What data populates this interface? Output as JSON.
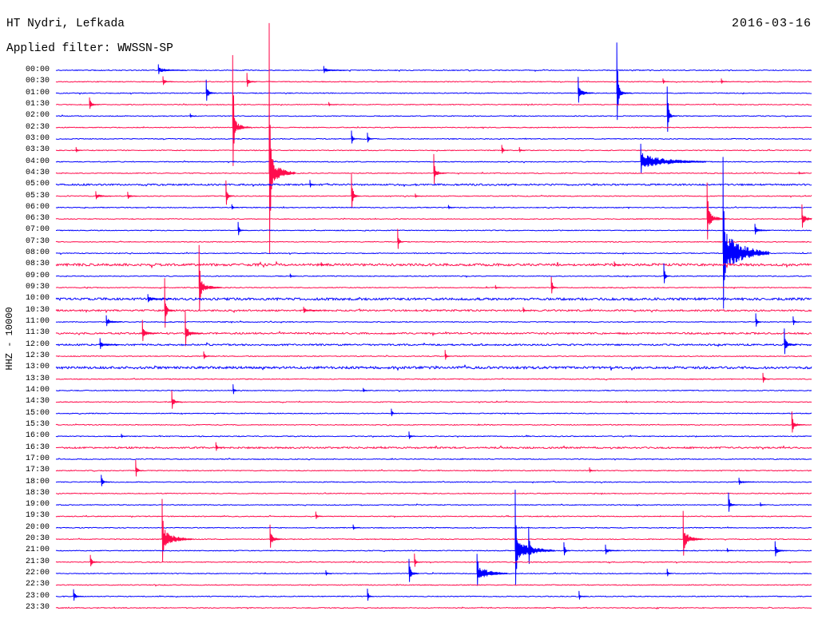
{
  "chart_data": {
    "type": "line",
    "title": "HT Nydri, Lefkada",
    "subtitle": "Applied filter: WWSSN-SP",
    "date": "2016-03-16",
    "ylabel": "HHZ - 10000",
    "xlabel": "",
    "traces": [
      {
        "label": "00:00",
        "color": "#0000ff",
        "events": [
          {
            "time": "00:04:04",
            "amp": 0.3,
            "coda": 0.2,
            "dur": 1.0
          },
          {
            "time": "00:10:38",
            "amp": 0.2,
            "coda": 0.15,
            "dur": 0.8
          }
        ]
      },
      {
        "label": "00:30",
        "color": "#ff0d4d",
        "events": [
          {
            "time": "00:34:15",
            "amp": 0.3,
            "coda": 0.15,
            "dur": 0.3
          },
          {
            "time": "00:37:35",
            "amp": 0.55,
            "coda": 0.2,
            "dur": 0.3
          },
          {
            "time": "00:54:06",
            "amp": 0.2
          },
          {
            "time": "00:56:25",
            "amp": 0.2
          }
        ]
      },
      {
        "label": "01:00",
        "color": "#0000ff",
        "events": [
          {
            "time": "01:05:58",
            "amp": 0.85,
            "coda": 0.3,
            "dur": 0.3
          },
          {
            "time": "01:20:44",
            "amp": 1.0,
            "coda": 0.4,
            "dur": 0.5
          },
          {
            "time": "01:22:16",
            "amp": 4.0,
            "coda": 0.4,
            "dur": 0.5
          }
        ]
      },
      {
        "label": "01:30",
        "color": "#ff0d4d",
        "events": [
          {
            "time": "01:31:20",
            "amp": 0.4,
            "coda": 0.2,
            "dur": 0.3
          },
          {
            "time": "01:40:50",
            "amp": 0.15
          }
        ]
      },
      {
        "label": "02:00",
        "color": "#0000ff",
        "events": [
          {
            "time": "02:24:16",
            "amp": 2.2,
            "coda": 0.35,
            "dur": 0.3
          },
          {
            "time": "02:05:20",
            "amp": 0.15
          }
        ]
      },
      {
        "label": "02:30",
        "color": "#ff0d4d",
        "events": [
          {
            "time": "02:37:01",
            "amp": 5.6,
            "coda": 0.7,
            "dur": 0.6
          }
        ]
      },
      {
        "label": "03:00",
        "color": "#0000ff",
        "events": [
          {
            "time": "03:11:44",
            "amp": 0.55,
            "coda": 0.15,
            "dur": 0.15
          },
          {
            "time": "03:12:22",
            "amp": 0.4
          }
        ]
      },
      {
        "label": "03:30",
        "color": "#ff0d4d",
        "events": [
          {
            "time": "03:30:48",
            "amp": 0.2
          },
          {
            "time": "03:47:42",
            "amp": 0.35
          },
          {
            "time": "03:48:24",
            "amp": 0.2
          }
        ]
      },
      {
        "label": "04:00",
        "color": "#0000ff",
        "events": [
          {
            "time": "04:23:13",
            "amp": 0.85,
            "coda": 0.7,
            "dur": 2.5
          }
        ]
      },
      {
        "label": "04:30",
        "color": "#ff0d4d",
        "events": [
          {
            "time": "04:38:28",
            "amp": 11.7,
            "coda": 1.4,
            "dur": 0.95
          },
          {
            "time": "04:45:00",
            "amp": 1.25,
            "coda": 0.4,
            "dur": 0.4
          },
          {
            "time": "04:59:30",
            "amp": 0.1
          }
        ]
      },
      {
        "label": "05:00",
        "color": "#0000ff",
        "noise": 0.07,
        "events": [
          {
            "time": "05:10:05",
            "amp": 0.3
          }
        ]
      },
      {
        "label": "05:30",
        "color": "#ff0d4d",
        "events": [
          {
            "time": "05:31:35",
            "amp": 0.2,
            "coda": 0.2,
            "dur": 0.5
          },
          {
            "time": "05:32:51",
            "amp": 0.2,
            "coda": 0.15,
            "dur": 0.3
          },
          {
            "time": "05:36:45",
            "amp": 1.05,
            "coda": 0.3,
            "dur": 0.2
          },
          {
            "time": "05:41:44",
            "amp": 1.55,
            "coda": 0.35,
            "dur": 0.25
          },
          {
            "time": "05:44:16",
            "amp": 0.15
          }
        ]
      },
      {
        "label": "06:00",
        "color": "#0000ff",
        "events": [
          {
            "time": "06:06:59",
            "amp": 0.2
          },
          {
            "time": "06:15:35",
            "amp": 0.15
          }
        ]
      },
      {
        "label": "06:30",
        "color": "#ff0d4d",
        "events": [
          {
            "time": "06:55:51",
            "amp": 2.45,
            "coda": 0.7,
            "dur": 0.65
          },
          {
            "time": "06:59:37",
            "amp": 0.85,
            "coda": 0.4,
            "dur": 0.45
          }
        ]
      },
      {
        "label": "07:00",
        "color": "#0000ff",
        "events": [
          {
            "time": "07:07:14",
            "amp": 0.55
          },
          {
            "time": "07:27:45",
            "amp": 0.35,
            "coda": 0.2,
            "dur": 0.5
          }
        ]
      },
      {
        "label": "07:30",
        "color": "#ff0d4d",
        "events": [
          {
            "time": "07:43:34",
            "amp": 0.85
          }
        ]
      },
      {
        "label": "08:00",
        "color": "#0000ff",
        "events": [
          {
            "time": "08:26:29",
            "amp": 6.3,
            "coda": 2.1,
            "dur": 1.75
          }
        ]
      },
      {
        "label": "08:30",
        "color": "#ff0d4d",
        "noise": 0.1,
        "events": [
          {
            "time": "08:52:10",
            "amp": 0.2
          },
          {
            "time": "08:40:32",
            "amp": 0.15
          }
        ]
      },
      {
        "label": "09:00",
        "color": "#0000ff",
        "events": [
          {
            "time": "09:24:08",
            "amp": 0.85
          },
          {
            "time": "09:09:18",
            "amp": 0.15
          }
        ]
      },
      {
        "label": "09:30",
        "color": "#ff0d4d",
        "events": [
          {
            "time": "09:35:41",
            "amp": 3.15,
            "coda": 0.55,
            "dur": 0.8
          },
          {
            "time": "09:49:40",
            "amp": 0.7
          },
          {
            "time": "09:47:27",
            "amp": 0.15
          }
        ]
      },
      {
        "label": "10:00",
        "color": "#0000ff",
        "noise": 0.1,
        "events": [
          {
            "time": "10:03:39",
            "amp": 0.2,
            "coda": 0.2,
            "dur": 0.8
          }
        ]
      },
      {
        "label": "10:30",
        "color": "#ff0d4d",
        "noise": 0.07,
        "events": [
          {
            "time": "10:34:19",
            "amp": 2.45,
            "coda": 0.35,
            "dur": 0.3
          },
          {
            "time": "10:48:33",
            "amp": 0.2
          },
          {
            "time": "10:39:50",
            "amp": 0.15,
            "coda": 0.15,
            "dur": 0.6
          }
        ]
      },
      {
        "label": "11:00",
        "color": "#0000ff",
        "events": [
          {
            "time": "11:02:00",
            "amp": 0.3,
            "coda": 0.25,
            "dur": 0.5
          },
          {
            "time": "11:27:47",
            "amp": 0.55
          },
          {
            "time": "11:29:16",
            "amp": 0.35
          }
        ]
      },
      {
        "label": "11:30",
        "color": "#ff0d4d",
        "noise": 0.07,
        "events": [
          {
            "time": "11:33:26",
            "amp": 0.85,
            "coda": 0.3,
            "dur": 0.5
          },
          {
            "time": "11:35:08",
            "amp": 1.55,
            "coda": 0.4,
            "dur": 0.6
          }
        ]
      },
      {
        "label": "12:00",
        "color": "#0000ff",
        "noise": 0.07,
        "events": [
          {
            "time": "12:01:45",
            "amp": 0.3,
            "coda": 0.25,
            "dur": 0.65
          },
          {
            "time": "12:28:55",
            "amp": 1.05,
            "coda": 0.35,
            "dur": 0.4
          }
        ]
      },
      {
        "label": "12:30",
        "color": "#ff0d4d",
        "events": [
          {
            "time": "12:35:52",
            "amp": 0.3
          },
          {
            "time": "12:45:27",
            "amp": 0.4
          }
        ]
      },
      {
        "label": "13:00",
        "color": "#0000ff",
        "noise": 0.1,
        "events": []
      },
      {
        "label": "13:30",
        "color": "#ff0d4d",
        "events": [
          {
            "time": "13:58:04",
            "amp": 0.4
          }
        ]
      },
      {
        "label": "14:00",
        "color": "#0000ff",
        "events": [
          {
            "time": "14:07:02",
            "amp": 0.4
          },
          {
            "time": "14:12:12",
            "amp": 0.15
          }
        ]
      },
      {
        "label": "14:30",
        "color": "#ff0d4d",
        "events": [
          {
            "time": "14:34:36",
            "amp": 0.7,
            "coda": 0.3,
            "dur": 0.3
          }
        ]
      },
      {
        "label": "15:00",
        "color": "#0000ff",
        "events": [
          {
            "time": "15:13:19",
            "amp": 0.3
          }
        ]
      },
      {
        "label": "15:30",
        "color": "#ff0d4d",
        "events": [
          {
            "time": "15:59:13",
            "amp": 0.85,
            "coda": 0.3,
            "dur": 0.4
          }
        ]
      },
      {
        "label": "16:00",
        "color": "#0000ff",
        "events": [
          {
            "time": "16:14:01",
            "amp": 0.3
          },
          {
            "time": "16:02:36",
            "amp": 0.15
          }
        ]
      },
      {
        "label": "16:30",
        "color": "#ff0d4d",
        "noise": 0.07,
        "events": [
          {
            "time": "16:36:21",
            "amp": 0.35
          }
        ]
      },
      {
        "label": "17:00",
        "color": "#0000ff",
        "events": []
      },
      {
        "label": "17:30",
        "color": "#ff0d4d",
        "events": [
          {
            "time": "17:33:10",
            "amp": 0.7,
            "coda": 0.2,
            "dur": 0.2
          },
          {
            "time": "17:51:11",
            "amp": 0.2
          }
        ]
      },
      {
        "label": "18:00",
        "color": "#0000ff",
        "events": [
          {
            "time": "18:01:48",
            "amp": 0.4,
            "coda": 0.2,
            "dur": 0.25
          },
          {
            "time": "18:27:07",
            "amp": 0.2,
            "coda": 0.15,
            "dur": 0.5
          }
        ]
      },
      {
        "label": "18:30",
        "color": "#ff0d4d",
        "events": []
      },
      {
        "label": "19:00",
        "color": "#0000ff",
        "events": [
          {
            "time": "19:26:42",
            "amp": 0.85,
            "coda": 0.2,
            "dur": 0.3
          },
          {
            "time": "19:27:58",
            "amp": 0.15
          }
        ]
      },
      {
        "label": "19:30",
        "color": "#ff0d4d",
        "events": [
          {
            "time": "19:40:19",
            "amp": 0.3
          }
        ]
      },
      {
        "label": "20:00",
        "color": "#0000ff",
        "events": [
          {
            "time": "20:11:48",
            "amp": 0.2
          }
        ]
      },
      {
        "label": "20:30",
        "color": "#ff0d4d",
        "events": [
          {
            "time": "20:34:13",
            "amp": 2.65,
            "coda": 0.85,
            "dur": 1.1
          },
          {
            "time": "20:38:30",
            "amp": 0.85,
            "coda": 0.4,
            "dur": 0.4
          },
          {
            "time": "20:54:54",
            "amp": 1.75,
            "coda": 0.7,
            "dur": 0.7
          }
        ]
      },
      {
        "label": "21:00",
        "color": "#0000ff",
        "events": [
          {
            "time": "21:18:14",
            "amp": 4.3,
            "coda": 1.0,
            "dur": 1.45
          },
          {
            "time": "21:18:46",
            "amp": 1.55,
            "coda": 0.5,
            "dur": 0.3
          },
          {
            "time": "21:20:10",
            "amp": 0.55
          },
          {
            "time": "21:21:49",
            "amp": 0.3,
            "coda": 0.2,
            "dur": 0.4
          },
          {
            "time": "21:28:33",
            "amp": 0.5,
            "coda": 0.3,
            "dur": 0.3
          },
          {
            "time": "21:26:39",
            "amp": 0.15
          }
        ]
      },
      {
        "label": "21:30",
        "color": "#ff0d4d",
        "events": [
          {
            "time": "21:31:22",
            "amp": 0.4,
            "coda": 0.2,
            "dur": 0.3
          },
          {
            "time": "21:44:14",
            "amp": 0.55
          }
        ]
      },
      {
        "label": "22:00",
        "color": "#0000ff",
        "events": [
          {
            "time": "22:14:01",
            "amp": 0.85,
            "coda": 0.4,
            "dur": 0.3
          },
          {
            "time": "22:16:43",
            "amp": 1.0,
            "coda": 0.7,
            "dur": 1.1
          },
          {
            "time": "22:24:16",
            "amp": 0.3
          },
          {
            "time": "22:10:43",
            "amp": 0.2
          }
        ]
      },
      {
        "label": "22:30",
        "color": "#ff0d4d",
        "events": []
      },
      {
        "label": "23:00",
        "color": "#0000ff",
        "events": [
          {
            "time": "23:00:42",
            "amp": 0.4,
            "coda": 0.2,
            "dur": 0.3
          },
          {
            "time": "23:12:22",
            "amp": 0.5
          },
          {
            "time": "23:20:46",
            "amp": 0.35
          }
        ]
      },
      {
        "label": "23:30",
        "color": "#ff0d4d",
        "events": []
      }
    ]
  }
}
